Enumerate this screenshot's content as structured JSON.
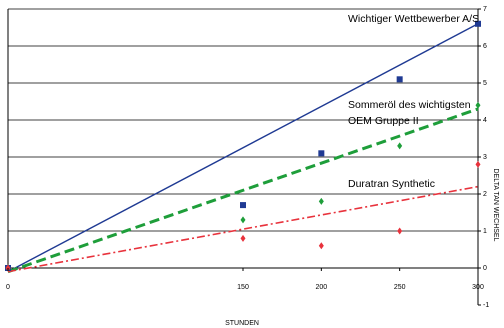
{
  "chart_data": {
    "type": "scatter",
    "title": "",
    "xlabel": "STUNDEN",
    "ylabel": "DELTA TAN WECHSEL",
    "xlim": [
      0,
      300
    ],
    "ylim": [
      -1,
      7
    ],
    "x_tick_labels": [
      "0",
      "150",
      "200",
      "250",
      "300"
    ],
    "y_tick_labels": [
      "-1",
      "0",
      "1",
      "2",
      "3",
      "4",
      "5",
      "6",
      "7"
    ],
    "grid": "horizontal",
    "series": [
      {
        "name": "Wichtiger Wettbewerber A/S",
        "color": "#1f3a93",
        "marker": "square",
        "line_style": "solid",
        "x": [
          0,
          150,
          200,
          250,
          300
        ],
        "values": [
          0,
          1.7,
          3.1,
          5.1,
          6.6
        ],
        "trend": [
          [
            0,
            -0.1
          ],
          [
            300,
            6.6
          ]
        ]
      },
      {
        "name": "Sommeröl des wichtigsten OEM Gruppe II",
        "color": "#1e9e3a",
        "marker": "diamond",
        "line_style": "dashed",
        "x": [
          0,
          150,
          200,
          250,
          300
        ],
        "values": [
          0,
          1.3,
          1.8,
          3.3,
          4.4
        ],
        "trend": [
          [
            0,
            -0.1
          ],
          [
            300,
            4.3
          ]
        ]
      },
      {
        "name": "Duratran Synthetic",
        "color": "#e8323c",
        "marker": "diamond",
        "line_style": "dash-dot",
        "x": [
          0,
          150,
          200,
          250,
          300
        ],
        "values": [
          0,
          0.8,
          0.6,
          1.0,
          2.8
        ],
        "trend": [
          [
            0,
            -0.1
          ],
          [
            300,
            2.2
          ]
        ]
      }
    ]
  }
}
